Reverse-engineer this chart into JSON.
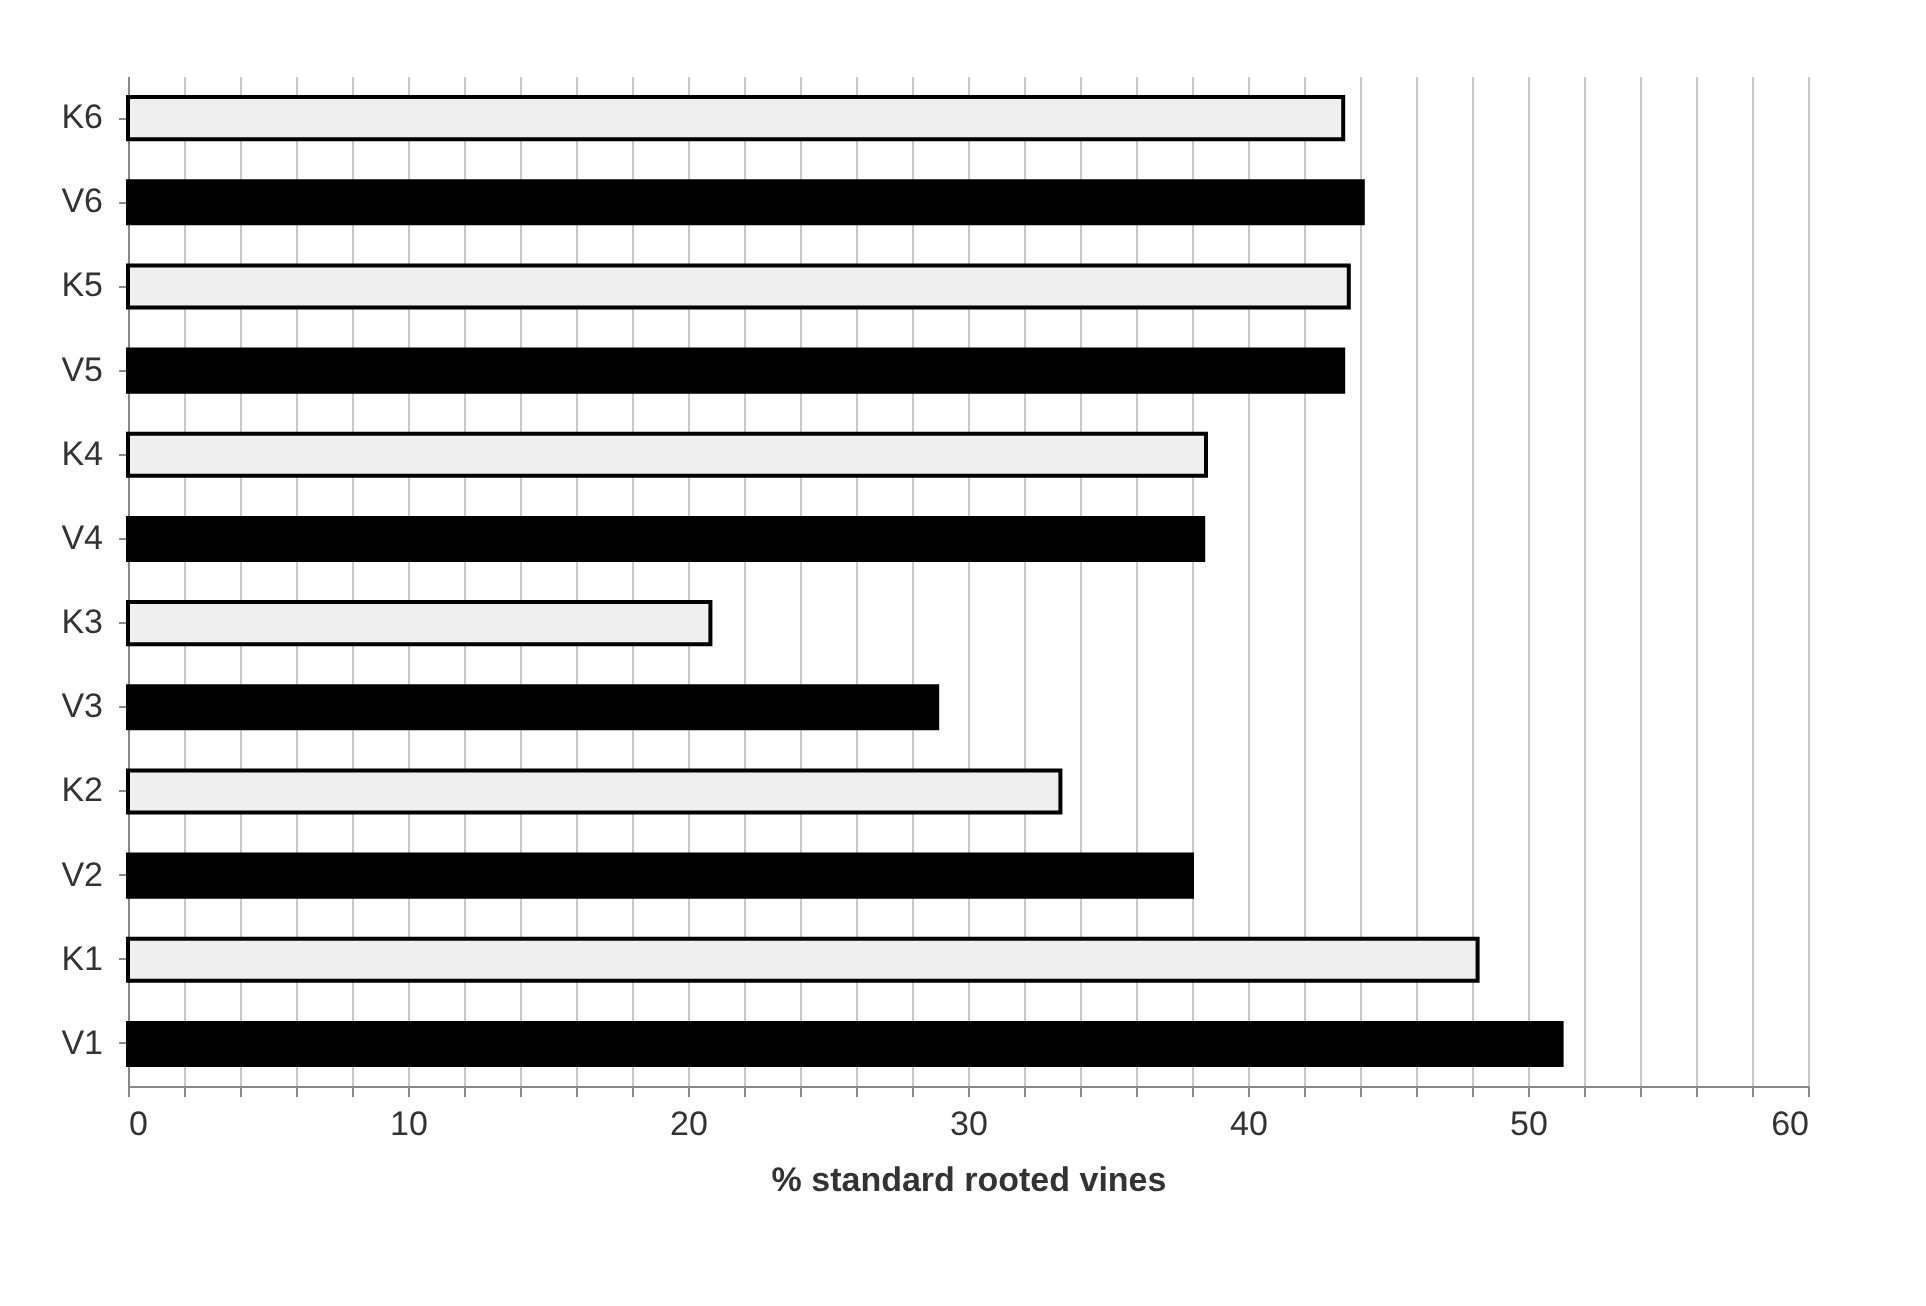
{
  "chart_data": {
    "type": "bar",
    "orientation": "horizontal",
    "xlabel": "% standard rooted vines",
    "categories": [
      "K6",
      "V6",
      "K5",
      "V5",
      "K4",
      "V4",
      "K3",
      "V3",
      "K2",
      "V2",
      "K1",
      "V1"
    ],
    "values": [
      43.4,
      44.1,
      43.6,
      43.4,
      38.5,
      38.4,
      20.8,
      28.9,
      33.3,
      38.0,
      48.2,
      51.2
    ],
    "colors": [
      "#efefef",
      "#000000",
      "#efefef",
      "#000000",
      "#efefef",
      "#000000",
      "#efefef",
      "#000000",
      "#efefef",
      "#000000",
      "#efefef",
      "#000000"
    ],
    "xlim": [
      0,
      60
    ],
    "xticks": [
      0,
      {
        "value": 2,
        "label": null
      },
      {
        "value": 4,
        "label": null
      },
      {
        "value": 6,
        "label": null
      },
      {
        "value": 8,
        "label": null
      },
      10,
      {
        "value": 12,
        "label": null
      },
      {
        "value": 14,
        "label": null
      },
      {
        "value": 16,
        "label": null
      },
      {
        "value": 18,
        "label": null
      },
      20,
      {
        "value": 22,
        "label": null
      },
      {
        "value": 24,
        "label": null
      },
      {
        "value": 26,
        "label": null
      },
      {
        "value": 28,
        "label": null
      },
      30,
      {
        "value": 32,
        "label": null
      },
      {
        "value": 34,
        "label": null
      },
      {
        "value": 36,
        "label": null
      },
      {
        "value": 38,
        "label": null
      },
      40,
      {
        "value": 42,
        "label": null
      },
      {
        "value": 44,
        "label": null
      },
      {
        "value": 46,
        "label": null
      },
      {
        "value": 48,
        "label": null
      },
      50,
      {
        "value": 52,
        "label": null
      },
      {
        "value": 54,
        "label": null
      },
      {
        "value": 56,
        "label": null
      },
      {
        "value": 58,
        "label": null
      },
      60
    ],
    "grid": "x",
    "legend": false
  }
}
